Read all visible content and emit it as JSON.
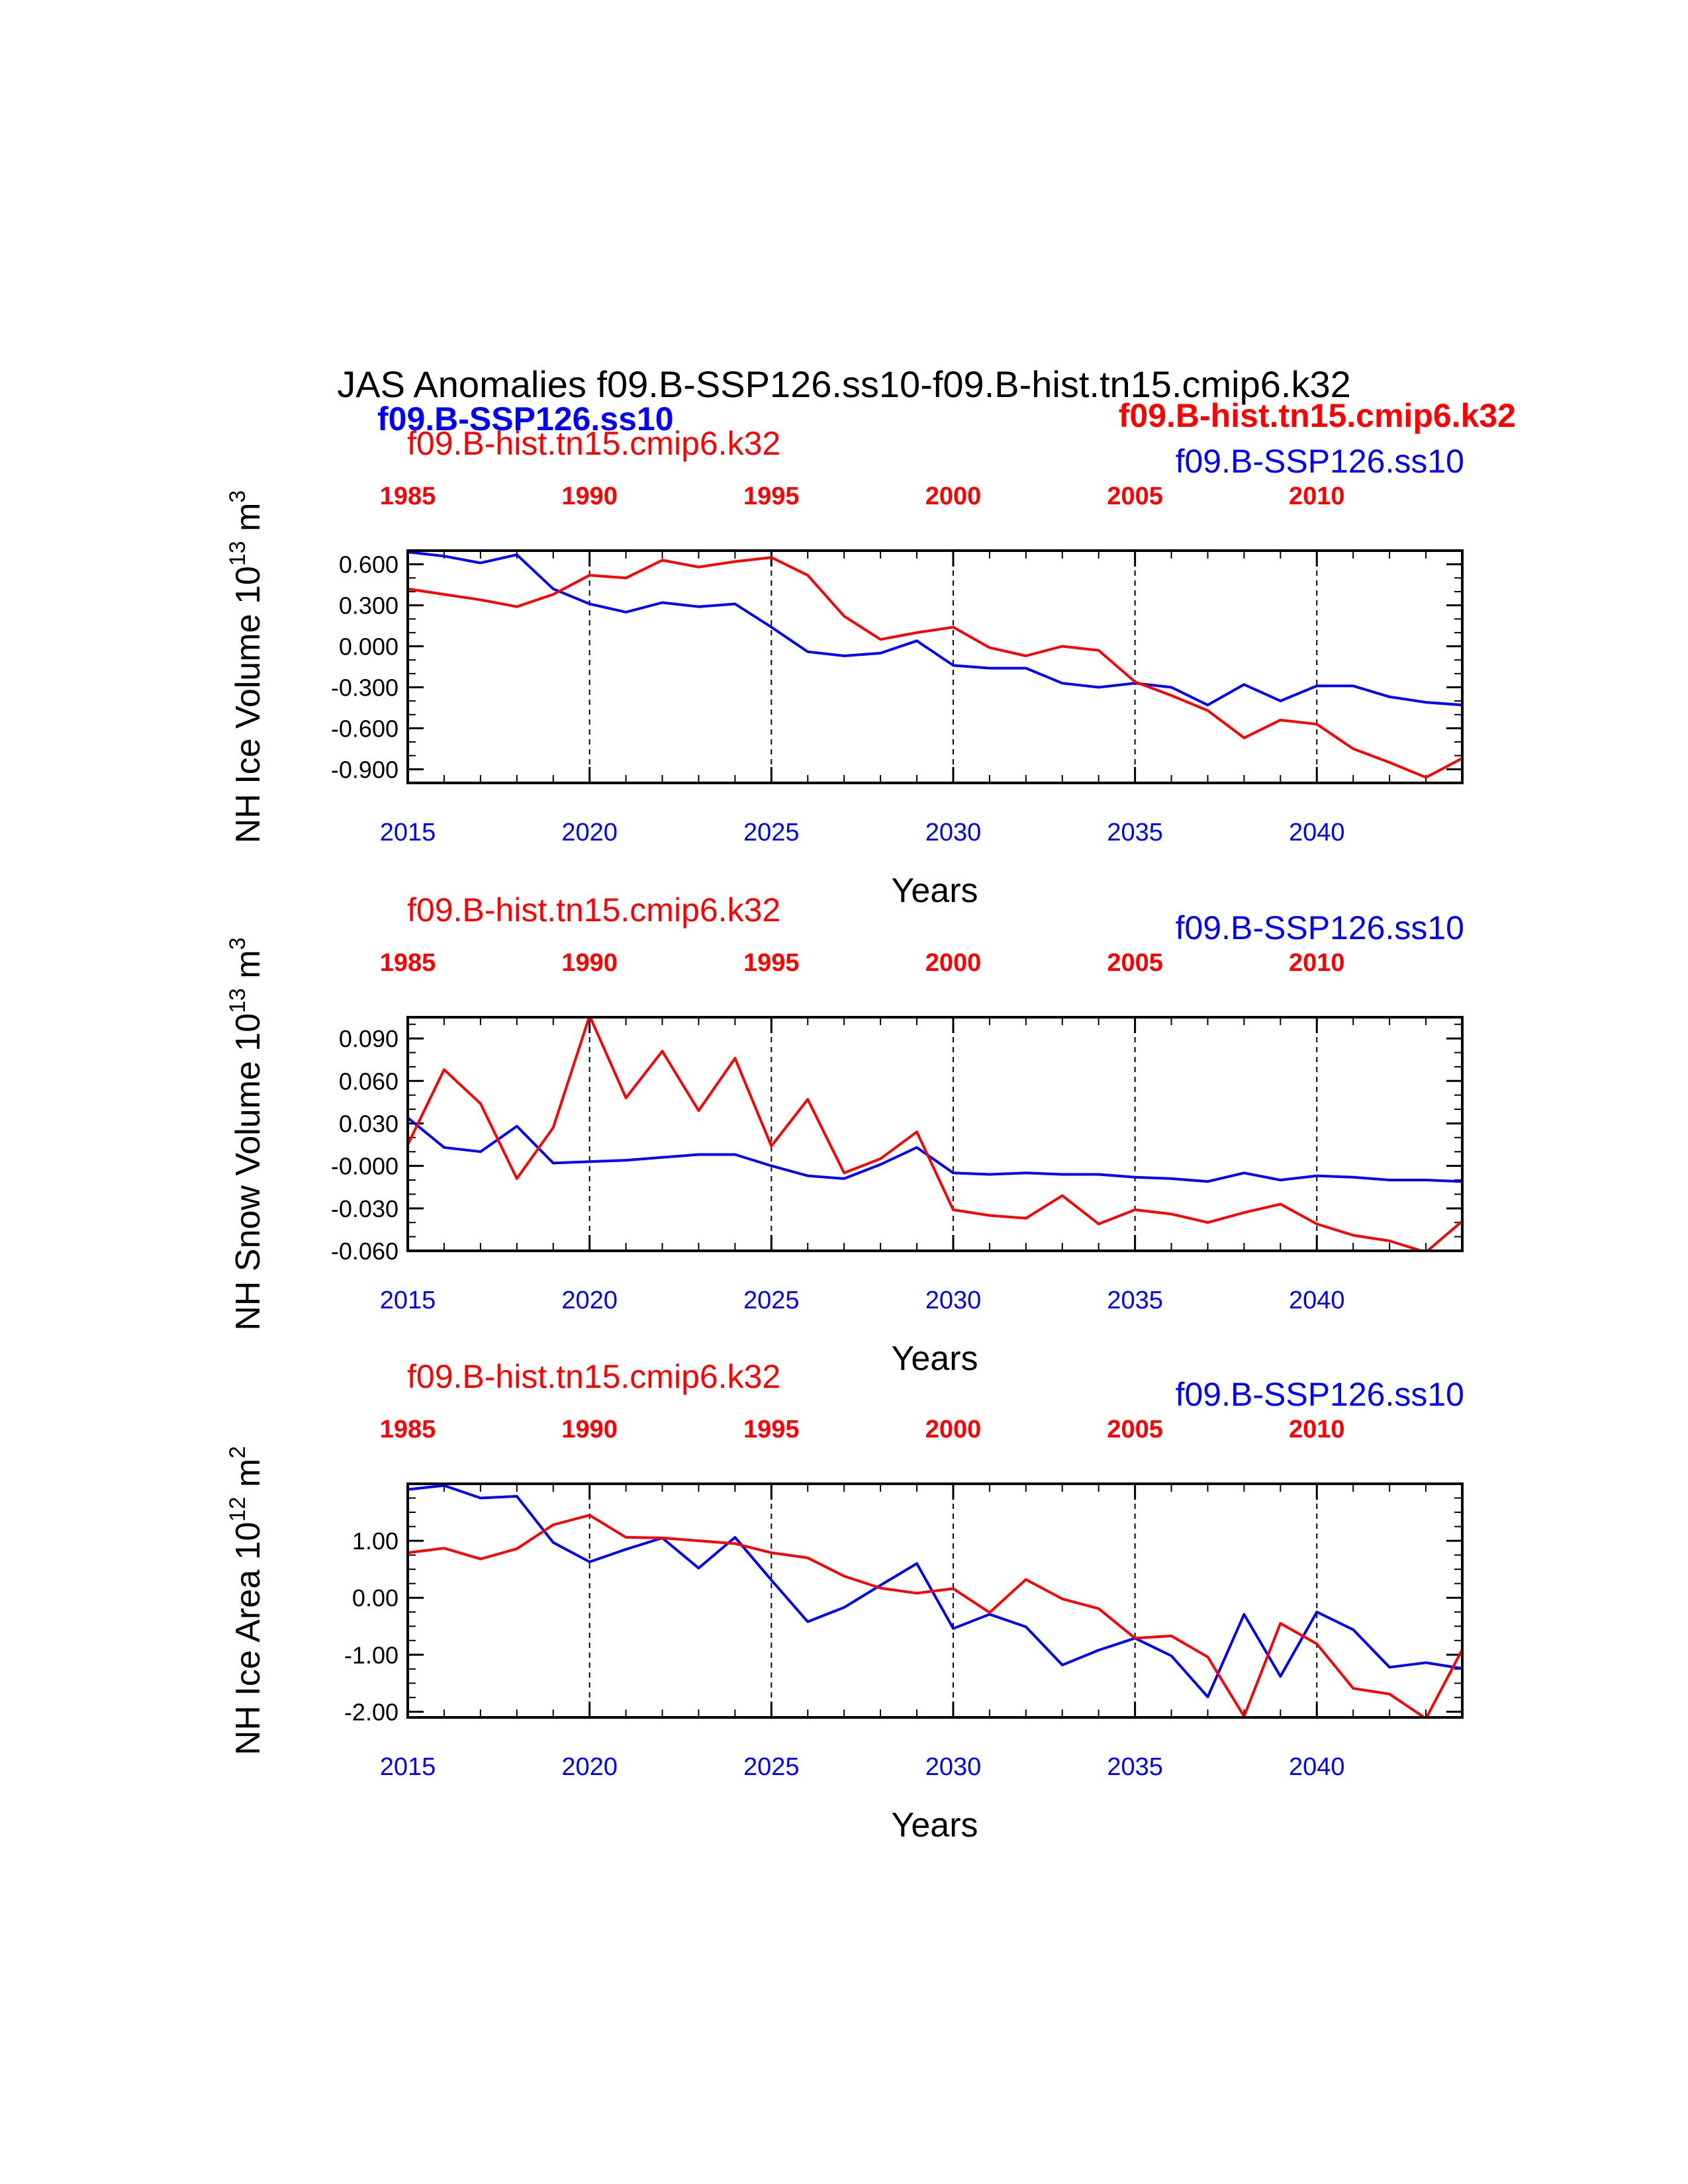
{
  "title": "JAS Anomalies f09.B-SSP126.ss10-f09.B-hist.tn15.cmip6.k32",
  "header_left": "f09.B-SSP126.ss10",
  "header_right": "f09.B-hist.tn15.cmip6.k32",
  "colors": {
    "ssp": "#0000ff",
    "hist": "#ff0000",
    "axis": "#000000"
  },
  "chart_data": [
    {
      "type": "line",
      "ylabel": "NH Ice Volume 10^13 m^3",
      "ylabel_main": "NH Ice Volume 10",
      "ylabel_exp": "13",
      "ylabel_unit": " m",
      "ylabel_unit_exp": "3",
      "xlabel": "Years",
      "ylim": [
        -1.0,
        0.7
      ],
      "yticks": [
        0.6,
        0.3,
        0.0,
        -0.3,
        -0.6,
        -0.9
      ],
      "ytick_labels": [
        "0.600",
        "0.300",
        "0.000",
        "-0.300",
        "-0.600",
        "-0.900"
      ],
      "x_bottom_ticks": [
        "2015",
        "2020",
        "2025",
        "2030",
        "2035",
        "2040"
      ],
      "x_top_ticks": [
        "1985",
        "1990",
        "1995",
        "2000",
        "2005",
        "2010"
      ],
      "caption_top_left": "f09.B-hist.tn15.cmip6.k32",
      "caption_top_right": "f09.B-SSP126.ss10",
      "series": [
        {
          "name": "f09.B-SSP126.ss10",
          "color": "#0000ff",
          "x": [
            2015,
            2016,
            2017,
            2018,
            2019,
            2020,
            2021,
            2022,
            2023,
            2024,
            2025,
            2026,
            2027,
            2028,
            2029,
            2030,
            2031,
            2032,
            2033,
            2034,
            2035,
            2036,
            2037,
            2038,
            2039,
            2040,
            2041,
            2042,
            2043,
            2044
          ],
          "values": [
            0.69,
            0.66,
            0.61,
            0.67,
            0.42,
            0.31,
            0.25,
            0.32,
            0.29,
            0.31,
            0.14,
            -0.04,
            -0.07,
            -0.05,
            0.04,
            -0.14,
            -0.16,
            -0.16,
            -0.27,
            -0.3,
            -0.27,
            -0.3,
            -0.43,
            -0.28,
            -0.4,
            -0.29,
            -0.29,
            -0.37,
            -0.41,
            -0.43
          ]
        },
        {
          "name": "f09.B-hist.tn15.cmip6.k32",
          "color": "#ff0000",
          "x": [
            2015,
            2016,
            2017,
            2018,
            2019,
            2020,
            2021,
            2022,
            2023,
            2024,
            2025,
            2026,
            2027,
            2028,
            2029,
            2030,
            2031,
            2032,
            2033,
            2034,
            2035,
            2036,
            2037,
            2038,
            2039,
            2040,
            2041,
            2042,
            2043,
            2044
          ],
          "values": [
            0.42,
            0.38,
            0.34,
            0.29,
            0.38,
            0.52,
            0.5,
            0.63,
            0.58,
            0.62,
            0.65,
            0.52,
            0.22,
            0.05,
            0.1,
            0.14,
            -0.01,
            -0.07,
            0.0,
            -0.03,
            -0.26,
            -0.36,
            -0.47,
            -0.67,
            -0.54,
            -0.57,
            -0.75,
            -0.85,
            -0.96,
            -0.82
          ]
        }
      ]
    },
    {
      "type": "line",
      "ylabel": "NH Snow Volume 10^13 m^3",
      "ylabel_main": "NH Snow Volume 10",
      "ylabel_exp": "13",
      "ylabel_unit": " m",
      "ylabel_unit_exp": "3",
      "xlabel": "Years",
      "ylim": [
        -0.06,
        0.105
      ],
      "yticks": [
        0.09,
        0.06,
        0.03,
        0.0,
        -0.03,
        -0.06
      ],
      "ytick_labels": [
        "0.090",
        "0.060",
        "0.030",
        "-0.000",
        "-0.030",
        "-0.060"
      ],
      "x_bottom_ticks": [
        "2015",
        "2020",
        "2025",
        "2030",
        "2035",
        "2040"
      ],
      "x_top_ticks": [
        "1985",
        "1990",
        "1995",
        "2000",
        "2005",
        "2010"
      ],
      "caption_top_left": "f09.B-hist.tn15.cmip6.k32",
      "caption_top_right": "f09.B-SSP126.ss10",
      "series": [
        {
          "name": "f09.B-SSP126.ss10",
          "color": "#0000ff",
          "x": [
            2015,
            2016,
            2017,
            2018,
            2019,
            2020,
            2021,
            2022,
            2023,
            2024,
            2025,
            2026,
            2027,
            2028,
            2029,
            2030,
            2031,
            2032,
            2033,
            2034,
            2035,
            2036,
            2037,
            2038,
            2039,
            2040,
            2041,
            2042,
            2043,
            2044
          ],
          "values": [
            0.034,
            0.013,
            0.01,
            0.028,
            0.002,
            0.003,
            0.004,
            0.006,
            0.008,
            0.008,
            0.0,
            -0.007,
            -0.009,
            0.001,
            0.013,
            -0.005,
            -0.006,
            -0.005,
            -0.006,
            -0.006,
            -0.008,
            -0.009,
            -0.011,
            -0.005,
            -0.01,
            -0.007,
            -0.008,
            -0.01,
            -0.01,
            -0.011
          ]
        },
        {
          "name": "f09.B-hist.tn15.cmip6.k32",
          "color": "#ff0000",
          "x": [
            2015,
            2016,
            2017,
            2018,
            2019,
            2020,
            2021,
            2022,
            2023,
            2024,
            2025,
            2026,
            2027,
            2028,
            2029,
            2030,
            2031,
            2032,
            2033,
            2034,
            2035,
            2036,
            2037,
            2038,
            2039,
            2040,
            2041,
            2042,
            2043,
            2044
          ],
          "values": [
            0.015,
            0.068,
            0.044,
            -0.009,
            0.027,
            0.106,
            0.048,
            0.081,
            0.039,
            0.076,
            0.014,
            0.047,
            -0.005,
            0.005,
            0.024,
            -0.031,
            -0.035,
            -0.037,
            -0.021,
            -0.041,
            -0.031,
            -0.034,
            -0.04,
            -0.033,
            -0.027,
            -0.041,
            -0.049,
            -0.053,
            -0.061,
            -0.039
          ]
        }
      ]
    },
    {
      "type": "line",
      "ylabel": "NH Ice Area 10^12 m^2",
      "ylabel_main": "NH Ice Area 10",
      "ylabel_exp": "12",
      "ylabel_unit": " m",
      "ylabel_unit_exp": "2",
      "xlabel": "Years",
      "ylim": [
        -2.1,
        2.0
      ],
      "yticks": [
        1.0,
        0.0,
        -1.0,
        -2.0
      ],
      "ytick_labels": [
        "1.00",
        "0.00",
        "-1.00",
        "-2.00"
      ],
      "x_bottom_ticks": [
        "2015",
        "2020",
        "2025",
        "2030",
        "2035",
        "2040"
      ],
      "x_top_ticks": [
        "1985",
        "1990",
        "1995",
        "2000",
        "2005",
        "2010"
      ],
      "caption_top_left": "f09.B-hist.tn15.cmip6.k32",
      "caption_top_right": "f09.B-SSP126.ss10",
      "series": [
        {
          "name": "f09.B-SSP126.ss10",
          "color": "#0000ff",
          "x": [
            2015,
            2016,
            2017,
            2018,
            2019,
            2020,
            2021,
            2022,
            2023,
            2024,
            2025,
            2026,
            2027,
            2028,
            2029,
            2030,
            2031,
            2032,
            2033,
            2034,
            2035,
            2036,
            2037,
            2038,
            2039,
            2040,
            2041,
            2042,
            2043,
            2044
          ],
          "values": [
            1.9,
            1.97,
            1.75,
            1.78,
            0.97,
            0.63,
            0.85,
            1.05,
            0.52,
            1.06,
            0.31,
            -0.42,
            -0.17,
            0.22,
            0.6,
            -0.54,
            -0.29,
            -0.51,
            -1.18,
            -0.92,
            -0.71,
            -1.02,
            -1.74,
            -0.29,
            -1.38,
            -0.25,
            -0.56,
            -1.22,
            -1.14,
            -1.24
          ]
        },
        {
          "name": "f09.B-hist.tn15.cmip6.k32",
          "color": "#ff0000",
          "x": [
            2015,
            2016,
            2017,
            2018,
            2019,
            2020,
            2021,
            2022,
            2023,
            2024,
            2025,
            2026,
            2027,
            2028,
            2029,
            2030,
            2031,
            2032,
            2033,
            2034,
            2035,
            2036,
            2037,
            2038,
            2039,
            2040,
            2041,
            2042,
            2043,
            2044
          ],
          "values": [
            0.79,
            0.87,
            0.68,
            0.86,
            1.28,
            1.45,
            1.06,
            1.05,
            1.0,
            0.95,
            0.79,
            0.7,
            0.38,
            0.17,
            0.08,
            0.16,
            -0.26,
            0.32,
            -0.02,
            -0.19,
            -0.71,
            -0.67,
            -1.04,
            -2.08,
            -0.45,
            -0.81,
            -1.59,
            -1.69,
            -2.12,
            -0.91
          ]
        }
      ]
    }
  ]
}
